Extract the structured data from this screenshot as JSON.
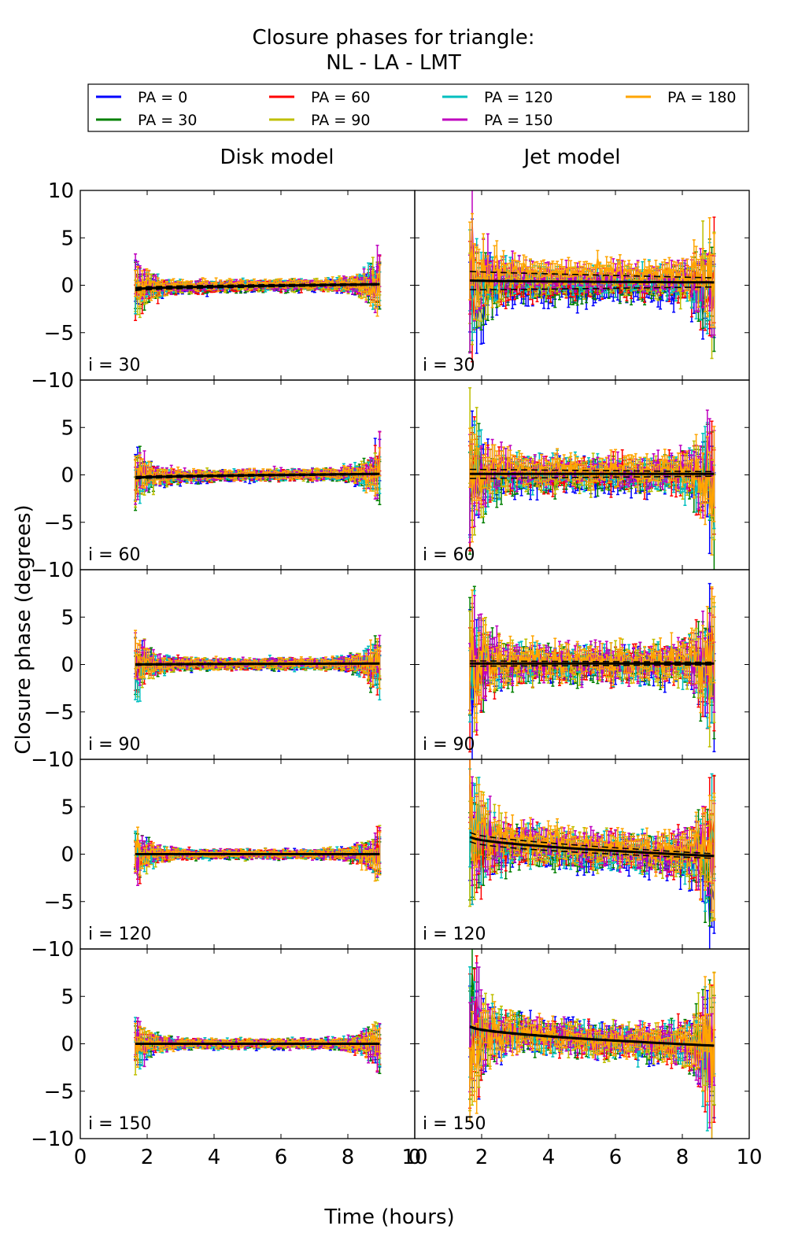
{
  "title_line1": "Closure phases for triangle:",
  "title_line2": "NL - LA - LMT",
  "column_titles": [
    "Disk model",
    "Jet model"
  ],
  "xlabel": "Time (hours)",
  "ylabel": "Closure phase (degrees)",
  "legend": [
    {
      "label": "PA = 0",
      "color": "#0000ff"
    },
    {
      "label": "PA = 30",
      "color": "#008000"
    },
    {
      "label": "PA = 60",
      "color": "#ff0000"
    },
    {
      "label": "PA = 90",
      "color": "#bfbf00"
    },
    {
      "label": "PA = 120",
      "color": "#00bfbf"
    },
    {
      "label": "PA = 150",
      "color": "#bf00bf"
    },
    {
      "label": "PA = 180",
      "color": "#ffa500"
    }
  ],
  "row_labels": [
    "i = 30",
    "i = 60",
    "i = 90",
    "i = 120",
    "i = 150"
  ],
  "chart_data": {
    "type": "line",
    "title": "Closure phases for triangle: NL - LA - LMT",
    "xlabel": "Time (hours)",
    "ylabel": "Closure phase (degrees)",
    "xlim": [
      0,
      10
    ],
    "ylim": [
      -10,
      10
    ],
    "xticks": [
      0,
      2,
      4,
      6,
      8,
      10
    ],
    "yticks": [
      -10,
      -5,
      0,
      5,
      10
    ],
    "time_range": [
      1.65,
      8.95
    ],
    "columns": [
      "Disk model",
      "Jet model"
    ],
    "rows": [
      "i = 30",
      "i = 60",
      "i = 90",
      "i = 120",
      "i = 150"
    ],
    "series_names": [
      "PA = 0",
      "PA = 30",
      "PA = 60",
      "PA = 90",
      "PA = 120",
      "PA = 150",
      "PA = 180"
    ],
    "panels": [
      {
        "column": "Disk model",
        "inclination": "i = 30",
        "noise_deg": 0.35,
        "edge_noise_deg": 1.8,
        "trend_start": -0.4,
        "trend_end": 0.1,
        "trend_dispersion": 0.2
      },
      {
        "column": "Jet model",
        "inclination": "i = 30",
        "noise_deg": 1.0,
        "edge_noise_deg": 4.0,
        "trend_start": 0.5,
        "trend_end": 0.3,
        "trend_dispersion": 1.2
      },
      {
        "column": "Disk model",
        "inclination": "i = 60",
        "noise_deg": 0.35,
        "edge_noise_deg": 1.8,
        "trend_start": -0.3,
        "trend_end": 0.1,
        "trend_dispersion": 0.15
      },
      {
        "column": "Jet model",
        "inclination": "i = 60",
        "noise_deg": 1.1,
        "edge_noise_deg": 4.0,
        "trend_start": 0.1,
        "trend_end": 0.1,
        "trend_dispersion": 0.6
      },
      {
        "column": "Disk model",
        "inclination": "i = 90",
        "noise_deg": 0.35,
        "edge_noise_deg": 1.8,
        "trend_start": 0.0,
        "trend_end": 0.1,
        "trend_dispersion": 0.1
      },
      {
        "column": "Jet model",
        "inclination": "i = 90",
        "noise_deg": 1.2,
        "edge_noise_deg": 4.5,
        "trend_start": 0.1,
        "trend_end": 0.1,
        "trend_dispersion": 0.35
      },
      {
        "column": "Disk model",
        "inclination": "i = 120",
        "noise_deg": 0.3,
        "edge_noise_deg": 1.6,
        "trend_start": 0.0,
        "trend_end": 0.0,
        "trend_dispersion": 0.05
      },
      {
        "column": "Jet model",
        "inclination": "i = 120",
        "noise_deg": 1.2,
        "edge_noise_deg": 4.5,
        "trend_start": 1.8,
        "trend_end": -0.2,
        "trend_dispersion": 0.6
      },
      {
        "column": "Disk model",
        "inclination": "i = 150",
        "noise_deg": 0.3,
        "edge_noise_deg": 1.6,
        "trend_start": 0.0,
        "trend_end": 0.0,
        "trend_dispersion": 0.05
      },
      {
        "column": "Jet model",
        "inclination": "i = 150",
        "noise_deg": 1.1,
        "edge_noise_deg": 5.0,
        "trend_start": 1.8,
        "trend_end": -0.2,
        "trend_dispersion": 0.1
      }
    ]
  }
}
